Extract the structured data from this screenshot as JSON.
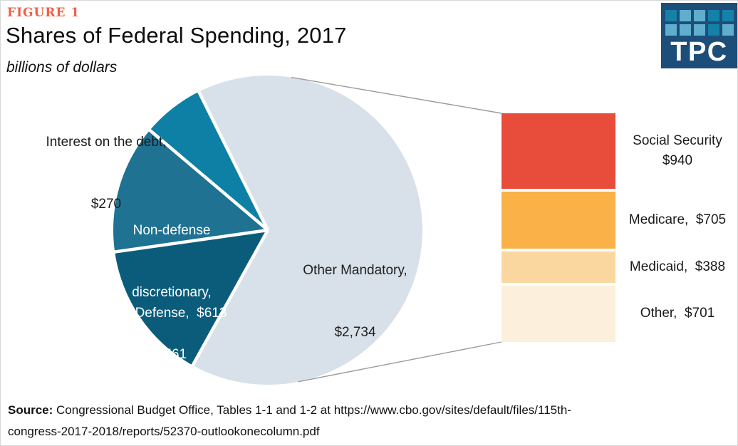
{
  "figure_label": "FIGURE 1",
  "title": "Shares of Federal Spending, 2017",
  "subtitle": "billions of dollars",
  "logo": {
    "text": "TPC",
    "bg_color": "#1C4E79",
    "square_colors": {
      "d": "#1581A9",
      "l": "#5FAECE"
    },
    "grid": [
      [
        "d",
        "l",
        "l",
        "d",
        "d"
      ],
      [
        "l",
        "l",
        "l",
        "d",
        "l"
      ]
    ]
  },
  "chart_data": {
    "type": "pie",
    "title": "Shares of Federal Spending, 2017",
    "units": "billions of dollars",
    "total": 4178,
    "start_angle_deg": -26.5,
    "clockwise": true,
    "slices": [
      {
        "name": "Other Mandatory",
        "value": 2734,
        "color": "#D8E1E9",
        "label_line1": "Other Mandatory,",
        "label_line2": "$2,734"
      },
      {
        "name": "Defense",
        "value": 613,
        "color": "#0B5C7B",
        "label_line1": "Defense,  $613"
      },
      {
        "name": "Non-defense discretionary",
        "value": 561,
        "color": "#1F7291",
        "label_line1": "Non-defense",
        "label_line2": "discretionary,",
        "label_line3": "$561"
      },
      {
        "name": "Interest on the debt",
        "value": 270,
        "color": "#0E80A5",
        "label_line1": "Interest on the debt,",
        "label_line2": "$270"
      }
    ],
    "breakout": {
      "of": "Other Mandatory",
      "total": 2734,
      "bars": [
        {
          "name": "Social Security",
          "value": 940,
          "color": "#E84C3A",
          "label_line1": "Social Security",
          "label_line2": "$940"
        },
        {
          "name": "Medicare",
          "value": 705,
          "color": "#F9B148",
          "label_line1": "Medicare,  $705"
        },
        {
          "name": "Medicaid",
          "value": 388,
          "color": "#FAD79E",
          "label_line1": "Medicaid,  $388"
        },
        {
          "name": "Other",
          "value": 701,
          "color": "#FCF0DC",
          "label_line1": "Other,  $701"
        }
      ]
    }
  },
  "source": {
    "label": "Source:",
    "line1": "Congressional Budget Office, Tables 1-1 and 1-2 at https://www.cbo.gov/sites/default/files/115th-",
    "line2": "congress-2017-2018/reports/52370-outlookonecolumn.pdf"
  }
}
